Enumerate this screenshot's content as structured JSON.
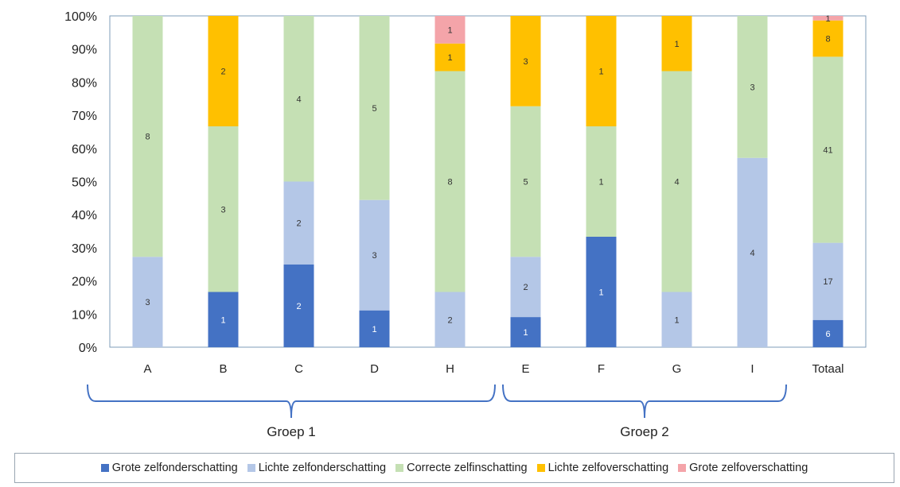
{
  "chart_data": {
    "type": "bar",
    "stacked": "percent",
    "categories": [
      "A",
      "B",
      "C",
      "D",
      "H",
      "E",
      "F",
      "G",
      "I",
      "Totaal"
    ],
    "series": [
      {
        "name": "Grote zelfonderschatting",
        "color": "#4472c4",
        "values": [
          0,
          1,
          2,
          1,
          0,
          1,
          1,
          0,
          0,
          6
        ]
      },
      {
        "name": "Lichte zelfonderschatting",
        "color": "#b4c7e7",
        "values": [
          3,
          0,
          2,
          3,
          2,
          2,
          0,
          1,
          4,
          17
        ]
      },
      {
        "name": "Correcte zelfinschatting",
        "color": "#c5e0b4",
        "values": [
          8,
          3,
          4,
          5,
          8,
          5,
          1,
          4,
          3,
          41
        ]
      },
      {
        "name": "Lichte zelfoverschatting",
        "color": "#ffc000",
        "values": [
          0,
          2,
          0,
          0,
          1,
          3,
          1,
          1,
          0,
          8
        ]
      },
      {
        "name": "Grote zelfoverschatting",
        "color": "#f4a4a9",
        "values": [
          0,
          0,
          0,
          0,
          1,
          0,
          0,
          0,
          0,
          1
        ]
      }
    ],
    "ylim": [
      0,
      100
    ],
    "y_ticks": [
      "0%",
      "10%",
      "20%",
      "30%",
      "40%",
      "50%",
      "60%",
      "70%",
      "80%",
      "90%",
      "100%"
    ],
    "groups": [
      {
        "label": "Groep 1",
        "categories": [
          "A",
          "B",
          "C",
          "D",
          "H"
        ]
      },
      {
        "label": "Groep 2",
        "categories": [
          "E",
          "F",
          "G",
          "I"
        ]
      }
    ],
    "legend_position": "bottom",
    "grid": false
  }
}
